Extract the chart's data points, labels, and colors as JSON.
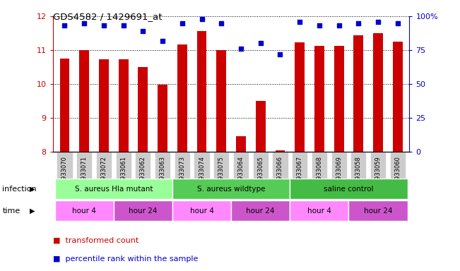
{
  "title": "GDS4582 / 1429691_at",
  "samples": [
    "GSM933070",
    "GSM933071",
    "GSM933072",
    "GSM933061",
    "GSM933062",
    "GSM933063",
    "GSM933073",
    "GSM933074",
    "GSM933075",
    "GSM933064",
    "GSM933065",
    "GSM933066",
    "GSM933067",
    "GSM933068",
    "GSM933069",
    "GSM933058",
    "GSM933059",
    "GSM933060"
  ],
  "red_values": [
    10.75,
    11.0,
    10.73,
    10.72,
    10.5,
    9.97,
    11.17,
    11.57,
    11.0,
    8.45,
    9.5,
    8.05,
    11.23,
    11.13,
    11.13,
    11.43,
    11.5,
    11.25
  ],
  "blue_values": [
    93,
    95,
    93,
    93,
    89,
    82,
    95,
    98,
    95,
    76,
    80,
    72,
    96,
    93,
    93,
    95,
    96,
    95
  ],
  "ylim_left": [
    8,
    12
  ],
  "ylim_right": [
    0,
    100
  ],
  "yticks_left": [
    8,
    9,
    10,
    11,
    12
  ],
  "yticks_right": [
    0,
    25,
    50,
    75,
    100
  ],
  "ytick_labels_right": [
    "0",
    "25",
    "50",
    "75",
    "100%"
  ],
  "bar_color": "#cc0000",
  "dot_color": "#0000cc",
  "infection_groups": [
    {
      "label": "S. aureus Hla mutant",
      "start": 0,
      "end": 6,
      "color": "#99ff99"
    },
    {
      "label": "S. aureus wildtype",
      "start": 6,
      "end": 12,
      "color": "#55cc55"
    },
    {
      "label": "saline control",
      "start": 12,
      "end": 18,
      "color": "#44bb44"
    }
  ],
  "time_groups": [
    {
      "label": "hour 4",
      "start": 0,
      "end": 3,
      "color": "#ff88ff"
    },
    {
      "label": "hour 24",
      "start": 3,
      "end": 6,
      "color": "#cc55cc"
    },
    {
      "label": "hour 4",
      "start": 6,
      "end": 9,
      "color": "#ff88ff"
    },
    {
      "label": "hour 24",
      "start": 9,
      "end": 12,
      "color": "#cc55cc"
    },
    {
      "label": "hour 4",
      "start": 12,
      "end": 15,
      "color": "#ff88ff"
    },
    {
      "label": "hour 24",
      "start": 15,
      "end": 18,
      "color": "#cc55cc"
    }
  ],
  "infection_label": "infection",
  "time_label": "time",
  "legend_red": "transformed count",
  "legend_blue": "percentile rank within the sample",
  "bg_color": "#ffffff",
  "axis_label_color_left": "#cc0000",
  "axis_label_color_right": "#0000cc",
  "sample_bg_color": "#cccccc",
  "bar_width": 0.5
}
